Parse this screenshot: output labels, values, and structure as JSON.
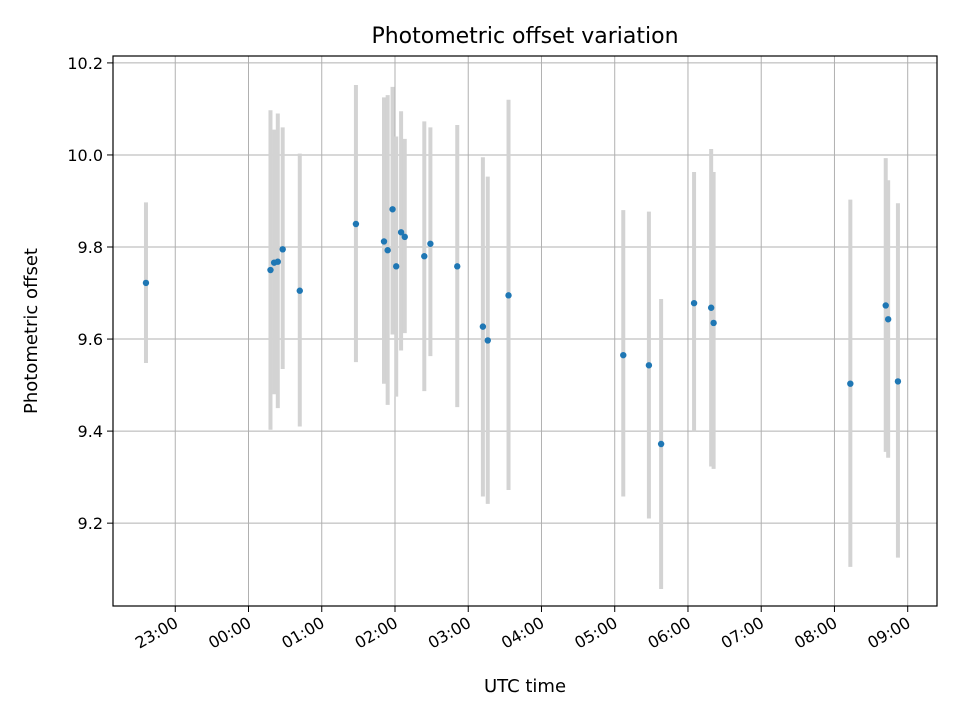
{
  "chart_data": {
    "type": "scatter",
    "title": "Photometric offset variation",
    "xlabel": "UTC time",
    "ylabel": "Photometric offset",
    "x_axis": "time (hours relative to 00:00 UTC)",
    "xlim": [
      "22:09",
      "09:24"
    ],
    "ylim": [
      9.02,
      10.215
    ],
    "xticks": [
      "23:00",
      "00:00",
      "01:00",
      "02:00",
      "03:00",
      "04:00",
      "05:00",
      "06:00",
      "07:00",
      "08:00",
      "09:00"
    ],
    "yticks": [
      "9.2",
      "9.4",
      "9.6",
      "9.8",
      "10.0",
      "10.2"
    ],
    "grid": true,
    "marker_color": "#1f77b4",
    "errorbar_color": "#d3d3d3",
    "points": [
      {
        "x": "22:36",
        "y": 9.722,
        "ylow": 9.548,
        "yhigh": 9.897
      },
      {
        "x": "00:18",
        "y": 9.75,
        "ylow": 9.403,
        "yhigh": 10.097
      },
      {
        "x": "00:21",
        "y": 9.766,
        "ylow": 9.48,
        "yhigh": 10.055
      },
      {
        "x": "00:24",
        "y": 9.768,
        "ylow": 9.45,
        "yhigh": 10.09
      },
      {
        "x": "00:28",
        "y": 9.795,
        "ylow": 9.535,
        "yhigh": 10.06
      },
      {
        "x": "00:42",
        "y": 9.705,
        "ylow": 9.41,
        "yhigh": 10.003
      },
      {
        "x": "01:28",
        "y": 9.85,
        "ylow": 9.55,
        "yhigh": 10.152
      },
      {
        "x": "01:51",
        "y": 9.812,
        "ylow": 9.503,
        "yhigh": 10.125
      },
      {
        "x": "01:54",
        "y": 9.793,
        "ylow": 9.457,
        "yhigh": 10.13
      },
      {
        "x": "01:58",
        "y": 9.882,
        "ylow": 9.61,
        "yhigh": 10.148
      },
      {
        "x": "02:01",
        "y": 9.758,
        "ylow": 9.475,
        "yhigh": 10.04
      },
      {
        "x": "02:05",
        "y": 9.832,
        "ylow": 9.575,
        "yhigh": 10.095
      },
      {
        "x": "02:08",
        "y": 9.822,
        "ylow": 9.613,
        "yhigh": 10.035
      },
      {
        "x": "02:24",
        "y": 9.78,
        "ylow": 9.487,
        "yhigh": 10.073
      },
      {
        "x": "02:29",
        "y": 9.807,
        "ylow": 9.563,
        "yhigh": 10.06
      },
      {
        "x": "02:51",
        "y": 9.758,
        "ylow": 9.452,
        "yhigh": 10.065
      },
      {
        "x": "03:12",
        "y": 9.627,
        "ylow": 9.258,
        "yhigh": 9.995
      },
      {
        "x": "03:16",
        "y": 9.597,
        "ylow": 9.242,
        "yhigh": 9.953
      },
      {
        "x": "03:33",
        "y": 9.695,
        "ylow": 9.272,
        "yhigh": 10.12
      },
      {
        "x": "05:07",
        "y": 9.565,
        "ylow": 9.258,
        "yhigh": 9.88
      },
      {
        "x": "05:28",
        "y": 9.543,
        "ylow": 9.21,
        "yhigh": 9.877
      },
      {
        "x": "05:38",
        "y": 9.372,
        "ylow": 9.057,
        "yhigh": 9.687
      },
      {
        "x": "06:05",
        "y": 9.678,
        "ylow": 9.4,
        "yhigh": 9.963
      },
      {
        "x": "06:19",
        "y": 9.668,
        "ylow": 9.323,
        "yhigh": 10.013
      },
      {
        "x": "06:21",
        "y": 9.635,
        "ylow": 9.318,
        "yhigh": 9.963
      },
      {
        "x": "08:13",
        "y": 9.503,
        "ylow": 9.105,
        "yhigh": 9.903
      },
      {
        "x": "08:42",
        "y": 9.673,
        "ylow": 9.355,
        "yhigh": 9.993
      },
      {
        "x": "08:44",
        "y": 9.643,
        "ylow": 9.342,
        "yhigh": 9.945
      },
      {
        "x": "08:52",
        "y": 9.508,
        "ylow": 9.125,
        "yhigh": 9.895
      }
    ]
  }
}
